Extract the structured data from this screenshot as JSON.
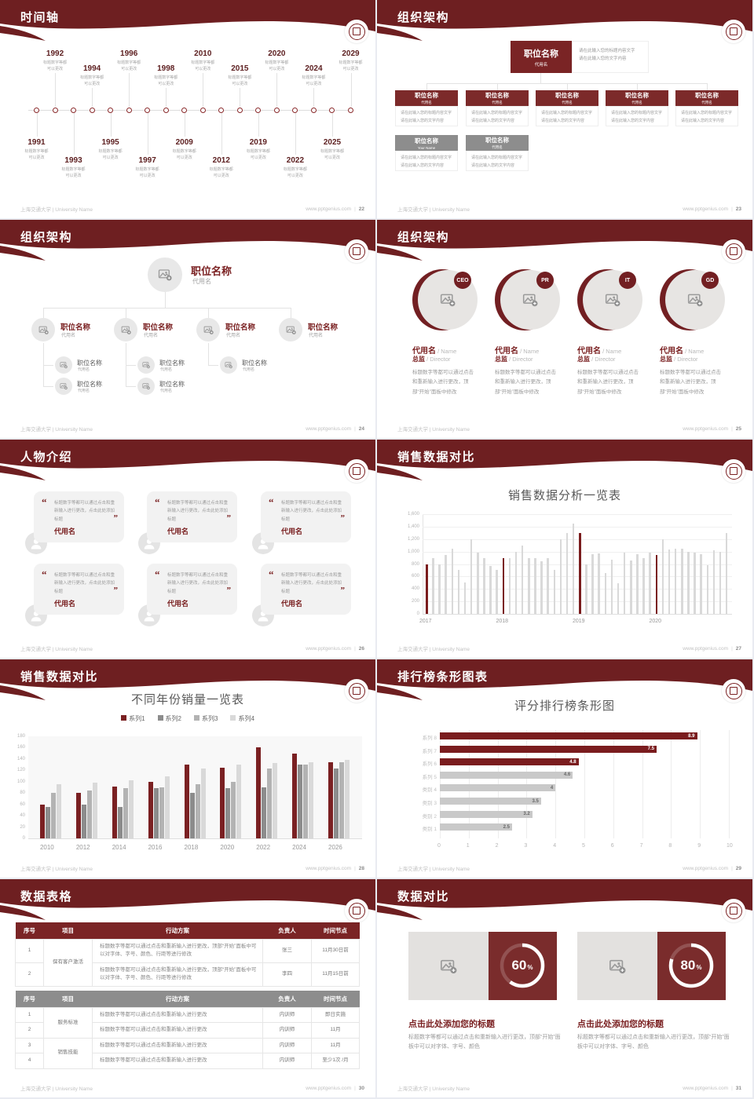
{
  "footer": {
    "left": "上海交通大学 | University Name",
    "site": "www.pptgenius.com",
    "sep": "|"
  },
  "placeholders": {
    "position": "职位名称",
    "alias": "代用名",
    "note_line1": "请在此输入您的标题内容文字",
    "note_line2": "请在此输入您的文字内容",
    "tl_cap1": "标题数字等都",
    "tl_cap2": "可以更改"
  },
  "slides": {
    "timeline": {
      "title": "时间轴",
      "page": "22",
      "years_below": [
        "1991",
        "1993",
        "1995",
        "1997",
        "2009",
        "2012",
        "2019",
        "2022",
        "2025"
      ],
      "years_above": [
        "1992",
        "1994",
        "1996",
        "1998",
        "2010",
        "2015",
        "2020",
        "2024",
        "2029"
      ]
    },
    "org_boxes": {
      "title": "组织架构",
      "page": "23",
      "root": {
        "name": "职位名称",
        "sub": "代用名"
      },
      "children": [
        {
          "name": "职位名称",
          "sub": "代用名"
        },
        {
          "name": "职位名称",
          "sub": "代用名"
        },
        {
          "name": "职位名称",
          "sub": "代用名"
        },
        {
          "name": "职位名称",
          "sub": "代用名"
        },
        {
          "name": "职位名称",
          "sub": "代用名"
        }
      ],
      "gray": [
        {
          "name": "职位名称",
          "sub": "Your Name"
        },
        {
          "name": "职位名称",
          "sub": "代用名"
        }
      ]
    },
    "org_tree": {
      "title": "组织架构",
      "page": "24",
      "sub_counts": [
        2,
        2,
        1,
        0
      ]
    },
    "org_circles": {
      "title": "组织架构",
      "page": "25",
      "badges": [
        "CEO",
        "PR",
        "IT",
        "GD"
      ],
      "name": "代用名",
      "name_en": " / Name",
      "role": "总监",
      "role_en": " /  Director",
      "desc": "标题数字等都可以通过点击和重新输入进行更改，顶部“开始”面板中修改"
    },
    "people": {
      "title": "人物介绍",
      "page": "26",
      "quote": "标题数字等都可以通过点击和重新输入进行更改，点击此处添加标题",
      "name": "代用名",
      "cards": 6
    },
    "sales_bars": {
      "title": "销售数据对比",
      "page": "27"
    },
    "sales_groups": {
      "title": "销售数据对比",
      "page": "28"
    },
    "ranking": {
      "title": "排行榜条形图表",
      "page": "29"
    },
    "data_table": {
      "title": "数据表格",
      "page": "30",
      "headers": [
        "序号",
        "项目",
        "行动方案",
        "负责人",
        "时间节点"
      ],
      "table1": {
        "project": "保有客户激活",
        "action": "标题数字等都可以通过点击和重新输入进行更改，顶部“开始”面板中可以对字体、字号、颜色、行距等进行修改",
        "rows": [
          {
            "no": "1",
            "owner": "张三",
            "time": "11月30日前"
          },
          {
            "no": "2",
            "owner": "李四",
            "time": "11月15日前"
          }
        ]
      },
      "table2": {
        "action": "标题数字等都可以通过点击和重新输入进行更改",
        "projects": [
          "服务标准",
          "销售技能"
        ],
        "rows": [
          {
            "no": "1",
            "owner": "内训师",
            "time": "即日实施"
          },
          {
            "no": "2",
            "owner": "内训师",
            "time": "11月"
          },
          {
            "no": "3",
            "owner": "内训师",
            "time": "11月"
          },
          {
            "no": "4",
            "owner": "内训师",
            "time": "至少1次 /月"
          }
        ]
      }
    },
    "compare": {
      "title": "数据对比",
      "page": "31",
      "cards": [
        {
          "pct": 60,
          "pct_label": "60",
          "pct_sign": "%",
          "title": "点击此处添加您的标题",
          "desc": "标题数字等都可以通过点击和重新输入进行更改，顶部“开始”面板中可以对字体、字号、颜色"
        },
        {
          "pct": 80,
          "pct_label": "80",
          "pct_sign": "%",
          "title": "点击此处添加您的标题",
          "desc": "标题数字等都可以通过点击和重新输入进行更改，顶部“开始”面板中可以对字体、字号、颜色"
        }
      ]
    }
  },
  "chart_data": [
    {
      "id": "monthly_sales",
      "type": "bar",
      "title": "销售数据分析一览表",
      "xlabel": "",
      "ylabel": "",
      "ylim": [
        0,
        1600
      ],
      "ytick_step": 200,
      "grid": true,
      "x_group_labels": [
        "2017",
        "2018",
        "2019",
        "2020"
      ],
      "group_start_indices": [
        0,
        12,
        24,
        36
      ],
      "values": [
        790,
        900,
        800,
        950,
        1050,
        700,
        500,
        1200,
        980,
        890,
        770,
        700,
        900,
        900,
        1000,
        1100,
        900,
        900,
        850,
        900,
        700,
        1200,
        1300,
        1450,
        1300,
        800,
        960,
        970,
        660,
        870,
        490,
        980,
        860,
        960,
        890,
        980,
        950,
        1200,
        1030,
        1050,
        1040,
        1000,
        980,
        960,
        780,
        1020,
        1000,
        1300
      ],
      "highlight_indices": [
        0,
        12,
        24,
        36
      ],
      "bar_color": "#d9d9d9",
      "highlight_color": "#7a1c1d"
    },
    {
      "id": "yearly_sales",
      "type": "bar",
      "title": "不同年份销量一览表",
      "categories": [
        "2010",
        "2012",
        "2014",
        "2016",
        "2018",
        "2020",
        "2022",
        "2024",
        "2026"
      ],
      "ylim": [
        0,
        180
      ],
      "ytick_step": 20,
      "legend_position": "top",
      "series": [
        {
          "name": "系列1",
          "color": "#7a2022",
          "values": [
            60,
            80,
            92,
            100,
            130,
            125,
            160,
            150,
            135
          ]
        },
        {
          "name": "系列2",
          "color": "#8c8c8c",
          "values": [
            55,
            60,
            55,
            88,
            80,
            88,
            90,
            130,
            123
          ]
        },
        {
          "name": "系列3",
          "color": "#b3b3b3",
          "values": [
            80,
            85,
            88,
            90,
            95,
            100,
            123,
            130,
            135
          ]
        },
        {
          "name": "系列4",
          "color": "#d9d9d9",
          "values": [
            95,
            98,
            103,
            110,
            123,
            130,
            133,
            135,
            138
          ]
        }
      ]
    },
    {
      "id": "ranking_scores",
      "type": "bar",
      "orientation": "horizontal",
      "title": "评分排行榜条形图",
      "categories": [
        "系列 8",
        "系列 7",
        "系列 6",
        "系列 5",
        "类别 4",
        "类别 3",
        "类别 2",
        "类别 1"
      ],
      "values": [
        8.9,
        7.5,
        4.8,
        4.6,
        4,
        3.5,
        3.2,
        2.5
      ],
      "value_labels": [
        "8.9",
        "7.5",
        "4.8",
        "4.6",
        "4",
        "3.5",
        "3.2",
        "2.5"
      ],
      "highlight_count": 3,
      "xlim": [
        0,
        10
      ],
      "xtick_step": 1,
      "grid": true,
      "bar_color": "#c9c9c9",
      "highlight_color": "#7a1c1e"
    },
    {
      "id": "donut_left",
      "type": "pie",
      "values": [
        60,
        40
      ],
      "label": "60%"
    },
    {
      "id": "donut_right",
      "type": "pie",
      "values": [
        80,
        20
      ],
      "label": "80%"
    }
  ]
}
